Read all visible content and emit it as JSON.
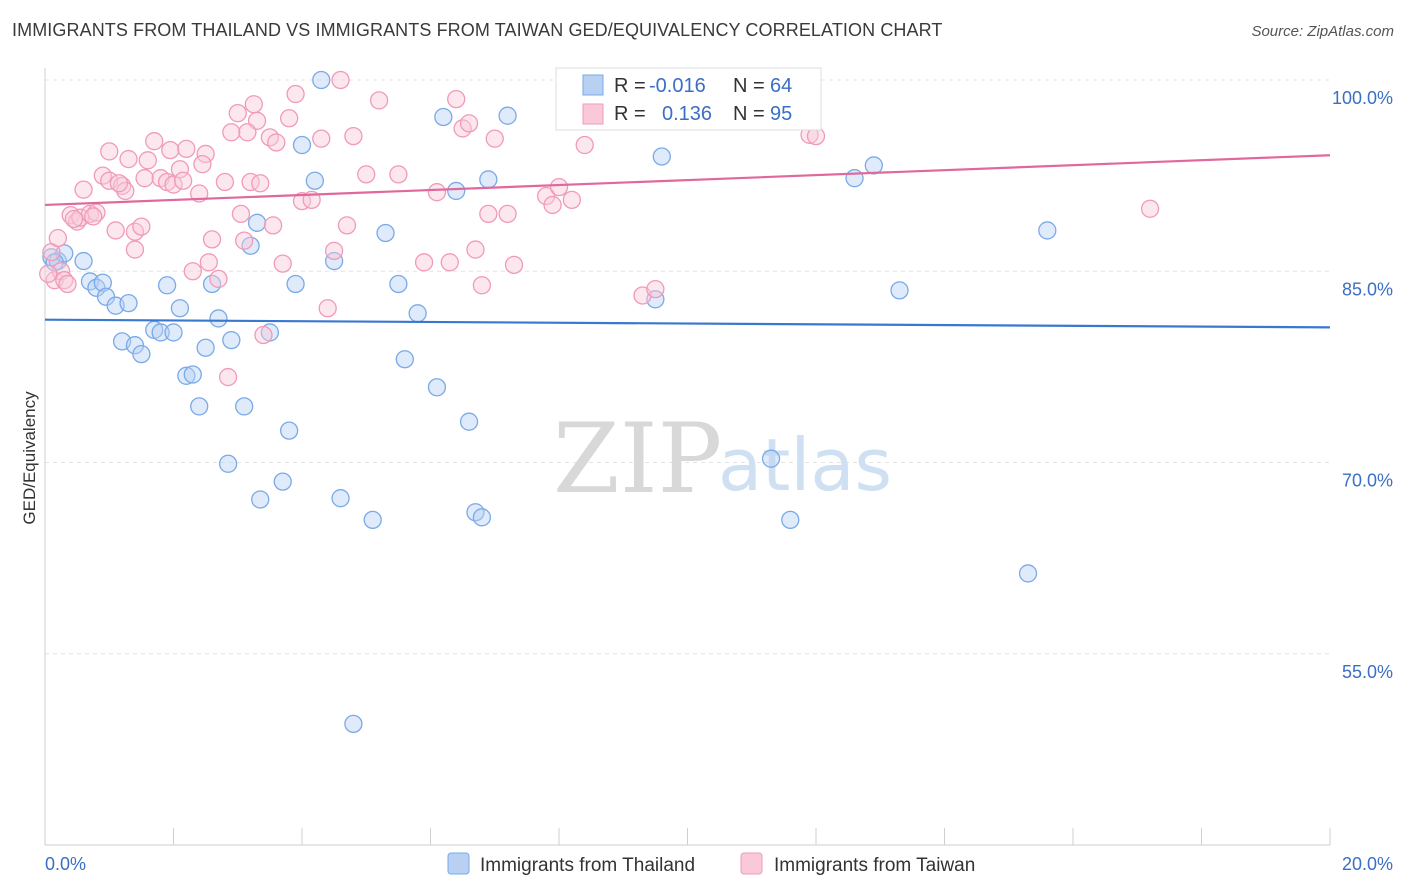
{
  "header": {
    "title": "IMMIGRANTS FROM THAILAND VS IMMIGRANTS FROM TAIWAN GED/EQUIVALENCY CORRELATION CHART",
    "source": "Source: ZipAtlas.com"
  },
  "watermark": {
    "part1": "ZIP",
    "part2": "atlas"
  },
  "chart_data": {
    "type": "scatter",
    "ylabel": "GED/Equivalency",
    "xlim": [
      0,
      20
    ],
    "ylim": [
      40,
      102
    ],
    "x_tick_labels": [
      "0.0%",
      "20.0%"
    ],
    "y_ticks": [
      100,
      85,
      70,
      55
    ],
    "y_tick_labels": [
      "100.0%",
      "85.0%",
      "70.0%",
      "55.0%"
    ],
    "grid": true,
    "legend_position": "top-center",
    "stats": [
      {
        "r_label": "R =",
        "r_value": "-0.016",
        "n_label": "N =",
        "n_value": "64"
      },
      {
        "r_label": "R =",
        "r_value": "0.136",
        "n_label": "N =",
        "n_value": "95"
      }
    ],
    "series": [
      {
        "name": "Immigrants from Thailand",
        "color": "#7aaae8",
        "line_color": "#3a78d0",
        "trend": {
          "x": [
            0,
            20
          ],
          "y": [
            81.2,
            80.6
          ]
        },
        "points": [
          [
            0.1,
            86.1
          ],
          [
            0.2,
            85.8
          ],
          [
            0.3,
            86.4
          ],
          [
            0.6,
            85.8
          ],
          [
            0.7,
            84.2
          ],
          [
            0.8,
            83.7
          ],
          [
            0.9,
            84.1
          ],
          [
            0.95,
            83.0
          ],
          [
            1.1,
            82.3
          ],
          [
            1.3,
            82.5
          ],
          [
            1.2,
            79.5
          ],
          [
            1.4,
            79.2
          ],
          [
            1.5,
            78.5
          ],
          [
            1.7,
            80.4
          ],
          [
            1.8,
            80.2
          ],
          [
            2.0,
            80.2
          ],
          [
            1.9,
            83.9
          ],
          [
            2.1,
            82.1
          ],
          [
            2.2,
            76.8
          ],
          [
            2.3,
            76.9
          ],
          [
            2.4,
            74.4
          ],
          [
            2.5,
            79.0
          ],
          [
            2.6,
            84.0
          ],
          [
            2.7,
            81.3
          ],
          [
            2.9,
            79.6
          ],
          [
            2.85,
            69.9
          ],
          [
            3.1,
            74.4
          ],
          [
            3.2,
            87.0
          ],
          [
            3.3,
            88.8
          ],
          [
            3.5,
            80.2
          ],
          [
            3.35,
            67.1
          ],
          [
            3.7,
            68.5
          ],
          [
            3.8,
            72.5
          ],
          [
            3.9,
            84.0
          ],
          [
            4.0,
            94.9
          ],
          [
            4.2,
            92.1
          ],
          [
            4.3,
            100.0
          ],
          [
            4.5,
            85.8
          ],
          [
            4.6,
            67.2
          ],
          [
            4.8,
            49.5
          ],
          [
            5.1,
            65.5
          ],
          [
            5.3,
            88.0
          ],
          [
            5.5,
            84.0
          ],
          [
            5.6,
            78.1
          ],
          [
            5.8,
            81.7
          ],
          [
            6.1,
            75.9
          ],
          [
            6.2,
            97.1
          ],
          [
            6.4,
            91.3
          ],
          [
            6.6,
            73.2
          ],
          [
            6.7,
            66.1
          ],
          [
            6.8,
            65.7
          ],
          [
            6.9,
            92.2
          ],
          [
            7.2,
            97.2
          ],
          [
            8.3,
            100.0
          ],
          [
            9.5,
            82.8
          ],
          [
            9.6,
            94.0
          ],
          [
            11.3,
            70.3
          ],
          [
            11.6,
            65.5
          ],
          [
            12.6,
            92.3
          ],
          [
            12.9,
            93.3
          ],
          [
            13.3,
            83.5
          ],
          [
            15.3,
            61.3
          ],
          [
            15.6,
            88.2
          ],
          [
            0.15,
            85.7
          ]
        ]
      },
      {
        "name": "Immigrants from Taiwan",
        "color": "#f19ab8",
        "line_color": "#e0689a",
        "trend": {
          "x": [
            0,
            20
          ],
          "y": [
            90.2,
            94.1
          ]
        },
        "points": [
          [
            0.1,
            86.5
          ],
          [
            0.15,
            84.3
          ],
          [
            0.2,
            87.6
          ],
          [
            0.25,
            85.0
          ],
          [
            0.3,
            84.3
          ],
          [
            0.4,
            89.4
          ],
          [
            0.5,
            88.9
          ],
          [
            0.55,
            89.2
          ],
          [
            0.6,
            91.4
          ],
          [
            0.7,
            89.5
          ],
          [
            0.8,
            89.6
          ],
          [
            0.9,
            92.5
          ],
          [
            1.0,
            92.1
          ],
          [
            1.0,
            94.4
          ],
          [
            1.1,
            88.2
          ],
          [
            1.2,
            91.7
          ],
          [
            1.25,
            91.3
          ],
          [
            1.3,
            93.8
          ],
          [
            1.4,
            86.7
          ],
          [
            1.4,
            88.1
          ],
          [
            1.5,
            88.5
          ],
          [
            1.6,
            93.7
          ],
          [
            1.7,
            95.2
          ],
          [
            1.8,
            92.3
          ],
          [
            1.9,
            92.0
          ],
          [
            1.95,
            94.5
          ],
          [
            2.0,
            91.8
          ],
          [
            2.1,
            93.0
          ],
          [
            2.15,
            92.1
          ],
          [
            2.2,
            94.6
          ],
          [
            2.3,
            85.0
          ],
          [
            2.4,
            91.1
          ],
          [
            2.5,
            94.2
          ],
          [
            2.55,
            85.7
          ],
          [
            2.6,
            87.5
          ],
          [
            2.7,
            84.4
          ],
          [
            2.8,
            92.0
          ],
          [
            2.85,
            76.7
          ],
          [
            2.9,
            95.9
          ],
          [
            3.0,
            97.4
          ],
          [
            3.05,
            89.5
          ],
          [
            3.1,
            87.4
          ],
          [
            3.2,
            92.0
          ],
          [
            3.25,
            98.1
          ],
          [
            3.3,
            96.8
          ],
          [
            3.35,
            91.9
          ],
          [
            3.4,
            80.0
          ],
          [
            3.5,
            95.5
          ],
          [
            3.55,
            88.6
          ],
          [
            3.6,
            95.1
          ],
          [
            3.7,
            85.6
          ],
          [
            3.8,
            97.0
          ],
          [
            3.9,
            98.9
          ],
          [
            4.0,
            90.5
          ],
          [
            4.3,
            95.4
          ],
          [
            4.4,
            82.1
          ],
          [
            4.5,
            86.6
          ],
          [
            4.6,
            100.0
          ],
          [
            4.7,
            88.6
          ],
          [
            4.8,
            95.6
          ],
          [
            5.0,
            92.6
          ],
          [
            5.2,
            98.4
          ],
          [
            5.5,
            92.6
          ],
          [
            5.9,
            85.7
          ],
          [
            6.1,
            91.2
          ],
          [
            6.3,
            85.7
          ],
          [
            6.4,
            98.5
          ],
          [
            6.5,
            96.2
          ],
          [
            6.6,
            96.6
          ],
          [
            6.7,
            86.7
          ],
          [
            6.8,
            83.9
          ],
          [
            6.9,
            89.5
          ],
          [
            7.0,
            95.4
          ],
          [
            7.2,
            89.5
          ],
          [
            7.3,
            85.5
          ],
          [
            7.8,
            90.9
          ],
          [
            7.9,
            90.2
          ],
          [
            8.0,
            91.6
          ],
          [
            8.2,
            90.6
          ],
          [
            8.4,
            94.9
          ],
          [
            9.3,
            83.1
          ],
          [
            9.5,
            83.6
          ],
          [
            11.9,
            95.7
          ],
          [
            12.0,
            95.6
          ],
          [
            17.2,
            89.9
          ],
          [
            0.05,
            84.8
          ],
          [
            0.35,
            84.0
          ],
          [
            0.45,
            89.1
          ],
          [
            0.75,
            89.3
          ],
          [
            1.15,
            91.9
          ],
          [
            1.55,
            92.3
          ],
          [
            2.45,
            93.4
          ],
          [
            3.15,
            95.9
          ],
          [
            4.15,
            90.6
          ],
          [
            11.8,
            100.0
          ]
        ]
      }
    ]
  }
}
